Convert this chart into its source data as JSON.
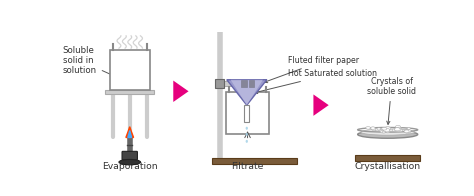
{
  "bg_color": "#ffffff",
  "arrow_color": "#e6007e",
  "beaker_fill": "#f2c4a8",
  "funnel_fill_outer": "#9999cc",
  "funnel_fill_inner": "#c8c8e8",
  "filtrate_fill": "#cce8f0",
  "stand_color": "#cccccc",
  "stand_dark": "#aaaaaa",
  "flame_red": "#ff4400",
  "flame_blue": "#44aaff",
  "plate_color": "#bbbbbb",
  "plate_light": "#dddddd",
  "base_color": "#7a5c3a",
  "bunsen_color": "#555555",
  "text_color": "#333333",
  "font_size": 6.2,
  "label_evaporation": "Evaporation",
  "label_filtrate": "Filtrate",
  "label_crystallisation": "Crystallisation",
  "label_soluble": "Soluble\nsolid in\nsolution",
  "label_fluted": "Fluted filter paper",
  "label_hot_sat": "Hot Saturated solution",
  "label_crystals": "Crystals of\nsoluble solid"
}
